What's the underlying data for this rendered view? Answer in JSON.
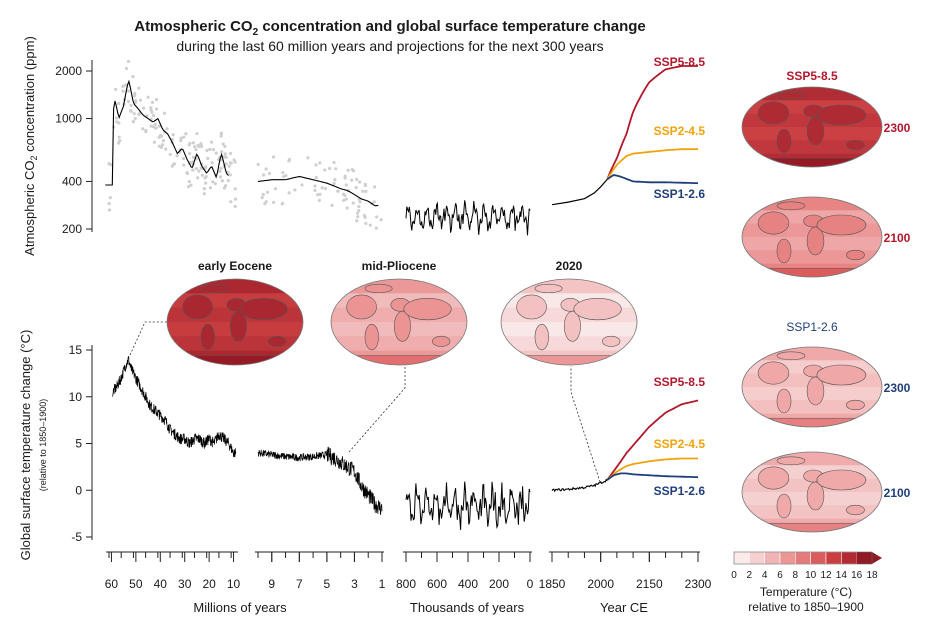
{
  "title": {
    "line1_prefix": "Atmospheric CO",
    "line1_sub": "2",
    "line1_suffix": " concentration and global surface temperature change",
    "line2": "during the last 60 million years and projections for the next 300 years"
  },
  "colors": {
    "ssp585": "#b2182b",
    "ssp245": "#f0a30a",
    "ssp126": "#1f3f7a",
    "history": "#000000",
    "proxy_points": "#cfcfcf"
  },
  "chart_data": [
    {
      "type": "line",
      "name": "co2",
      "ylabel_prefix": "Atmospheric CO",
      "ylabel_sub": "2",
      "ylabel_suffix": " concentration (ppm)",
      "yscale": "log",
      "yticks": [
        200,
        400,
        1000,
        2000
      ],
      "panels": [
        {
          "xunit": "Millions of years",
          "xlim": [
            61,
            9
          ],
          "smooth": {
            "x": [
              59.5,
              58.5,
              57,
              55,
              53,
              51,
              49,
              47,
              45,
              43,
              41,
              39,
              37,
              35,
              33,
              31,
              29,
              27,
              25,
              23,
              21,
              19,
              17,
              15,
              13,
              11,
              10
            ],
            "y": [
              1050,
              1300,
              1000,
              1200,
              1750,
              1250,
              1150,
              1050,
              1000,
              950,
              1000,
              850,
              800,
              700,
              600,
              650,
              550,
              480,
              600,
              500,
              450,
              500,
              420,
              600,
              450,
              420,
              380
            ]
          }
        },
        {
          "xunit": "Millions of years",
          "xlim": [
            10,
            1
          ],
          "smooth": {
            "x": [
              10,
              9,
              8,
              7,
              6,
              5,
              4,
              3.5,
              3,
              2.5,
              2,
              1.5,
              1
            ],
            "y": [
              400,
              410,
              410,
              430,
              410,
              390,
              360,
              350,
              330,
              310,
              300,
              280,
              285
            ]
          }
        },
        {
          "xunit": "Thousands of years",
          "xlim": [
            800,
            0
          ],
          "range": [
            180,
            300
          ]
        },
        {
          "xunit": "Year CE",
          "xlim": [
            1850,
            2300
          ],
          "history": {
            "x": [
              1850,
              1900,
              1950,
              1980,
              2000,
              2020
            ],
            "y": [
              285,
              296,
              311,
              338,
              370,
              412
            ]
          }
        }
      ],
      "scenarios": [
        {
          "name": "SSP5-8.5",
          "x": [
            2020,
            2050,
            2080,
            2100,
            2150,
            2200,
            2250,
            2300
          ],
          "y": [
            412,
            560,
            800,
            1100,
            1700,
            2050,
            2150,
            2150
          ]
        },
        {
          "name": "SSP2-4.5",
          "x": [
            2020,
            2050,
            2080,
            2100,
            2150,
            2200,
            2250,
            2300
          ],
          "y": [
            412,
            510,
            580,
            600,
            615,
            630,
            640,
            640
          ]
        },
        {
          "name": "SSP1-2.6",
          "x": [
            2020,
            2040,
            2060,
            2080,
            2100,
            2150,
            2200,
            2300
          ],
          "y": [
            412,
            440,
            430,
            415,
            400,
            395,
            395,
            390
          ]
        }
      ]
    },
    {
      "type": "line",
      "name": "temperature",
      "ylabel": "Global surface temperature change (°C)",
      "ylabel_note": "(relative to 1850–1900)",
      "ylim": [
        -5,
        15
      ],
      "yticks": [
        -5,
        0,
        5,
        10,
        15
      ],
      "panels": [
        {
          "xunit": "Millions of years",
          "xlim": [
            61,
            9
          ],
          "xticks": [
            60,
            50,
            40,
            30,
            20,
            10
          ],
          "series": {
            "x": [
              59.5,
              58,
              56,
              54,
              53,
              52,
              50,
              48,
              46,
              44,
              42,
              40,
              38,
              36,
              34,
              32,
              30,
              28,
              26,
              24,
              22,
              20,
              18,
              16,
              14,
              12,
              10
            ],
            "y": [
              10.5,
              11,
              12,
              13.5,
              14,
              13,
              12,
              11,
              10,
              9,
              8.5,
              8,
              7.5,
              6.5,
              6,
              5.5,
              5.5,
              5,
              5.5,
              5.5,
              5,
              5.5,
              5,
              6,
              5.5,
              5,
              4
            ]
          }
        },
        {
          "xunit": "Millions of years",
          "xlim": [
            10,
            1
          ],
          "xticks": [
            9,
            7,
            5,
            3,
            1
          ],
          "series": {
            "x": [
              10,
              9,
              8,
              7,
              6,
              5,
              4.5,
              4,
              3.5,
              3,
              2.5,
              2,
              1.5,
              1
            ],
            "y": [
              4,
              3.8,
              3.6,
              3.5,
              3.6,
              3.8,
              3.5,
              3,
              2.5,
              2,
              0.5,
              -0.5,
              -1.5,
              -2
            ]
          }
        },
        {
          "xunit": "Thousands of years",
          "xlim": [
            800,
            0
          ],
          "xticks": [
            800,
            600,
            400,
            200,
            0
          ],
          "range": [
            -4.5,
            1
          ]
        },
        {
          "xunit": "Year CE",
          "xlim": [
            1850,
            2300
          ],
          "xticks": [
            1850,
            2000,
            2150,
            2300
          ],
          "history": {
            "x": [
              1850,
              1900,
              1950,
              1980,
              2000,
              2020
            ],
            "y": [
              0,
              0.1,
              0.3,
              0.5,
              0.8,
              1.1
            ]
          }
        }
      ],
      "scenarios": [
        {
          "name": "SSP5-8.5",
          "x": [
            2020,
            2050,
            2080,
            2100,
            2150,
            2200,
            2250,
            2300
          ],
          "y": [
            1.1,
            2.5,
            4,
            4.8,
            6.8,
            8.3,
            9.2,
            9.6
          ]
        },
        {
          "name": "SSP2-4.5",
          "x": [
            2020,
            2050,
            2080,
            2100,
            2150,
            2200,
            2250,
            2300
          ],
          "y": [
            1.1,
            2,
            2.6,
            2.8,
            3.1,
            3.3,
            3.4,
            3.4
          ]
        },
        {
          "name": "SSP1-2.6",
          "x": [
            2020,
            2040,
            2060,
            2080,
            2100,
            2150,
            2200,
            2300
          ],
          "y": [
            1.1,
            1.6,
            1.8,
            1.8,
            1.7,
            1.6,
            1.5,
            1.4
          ]
        }
      ]
    }
  ],
  "x_axis_labels": [
    "Millions of years",
    "Thousands of years",
    "Year CE"
  ],
  "maps": [
    {
      "label": "early Eocene",
      "level": 0.78
    },
    {
      "label": "mid-Pliocene",
      "level": 0.22
    },
    {
      "label": "2020",
      "level": 0.05
    }
  ],
  "projection_maps": {
    "top_heading": "SSP5-8.5",
    "top_maps": [
      {
        "year": "2300",
        "level": 0.75
      },
      {
        "year": "2100",
        "level": 0.3
      }
    ],
    "bottom_heading": "SSP1-2.6",
    "bottom_maps": [
      {
        "year": "2300",
        "level": 0.15
      },
      {
        "year": "2100",
        "level": 0.14
      }
    ]
  },
  "colorbar": {
    "ticks": [
      "0",
      "2",
      "4",
      "6",
      "8",
      "10",
      "12",
      "14",
      "16",
      "18"
    ],
    "colors": [
      "#fbeaea",
      "#f6d0d0",
      "#f1b3b3",
      "#ec9696",
      "#e57a7a",
      "#dc5c5c",
      "#cc3d42",
      "#b42a33",
      "#8e1a25"
    ],
    "label_line1": "Temperature (°C)",
    "label_line2": "relative to 1850–1900"
  }
}
